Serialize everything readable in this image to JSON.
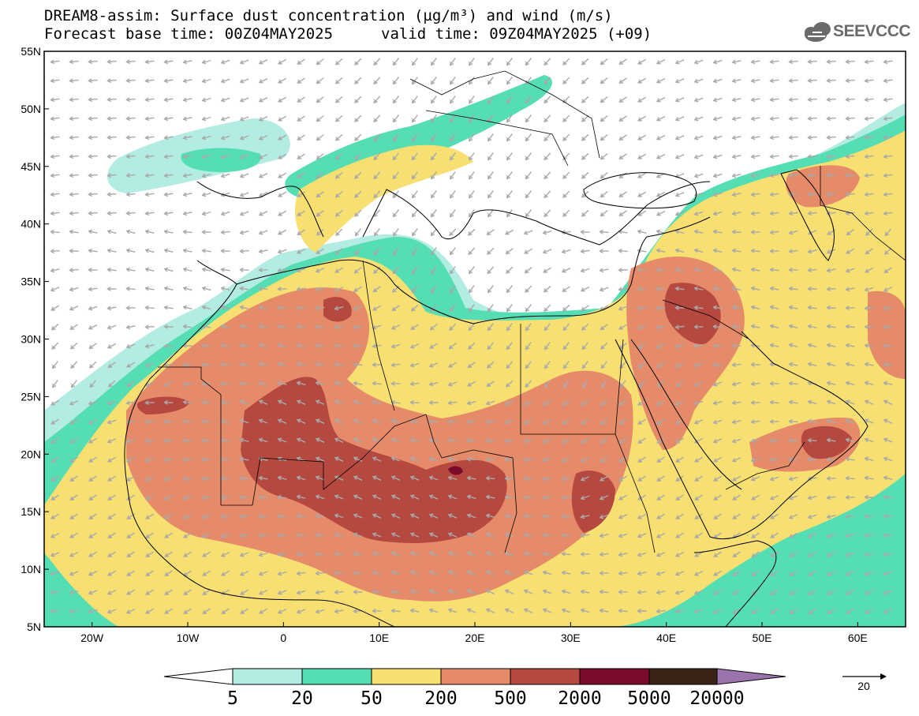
{
  "title": {
    "line1": "DREAM8-assim: Surface dust concentration (µg/m³) and wind (m/s)",
    "forecast_base": "Forecast base time: 00Z04MAY2025",
    "valid_time": "valid time: 09Z04MAY2025 (+09)"
  },
  "logo": {
    "text": "SEEVCCC",
    "icon": "cloud-icon"
  },
  "map": {
    "lon_range": [
      -25,
      65
    ],
    "lat_range": [
      5,
      55
    ],
    "lat_ticks": [
      "55N",
      "50N",
      "45N",
      "40N",
      "35N",
      "30N",
      "25N",
      "20N",
      "15N",
      "10N",
      "5N"
    ],
    "lon_ticks": [
      "20W",
      "10W",
      "0",
      "10E",
      "20E",
      "30E",
      "40E",
      "50E",
      "60E"
    ],
    "colors": {
      "5": "#b3ece2",
      "20": "#55ddb3",
      "50": "#f7df72",
      "200": "#e68b6a",
      "500": "#b5483f",
      "2000": "#7b0b2a",
      "5000": "#3a2418",
      "20000": "#9b74ad",
      "wind_arrow": "#a9a9a9",
      "coastline": "#000000"
    }
  },
  "colorbar": {
    "levels": [
      "5",
      "20",
      "50",
      "200",
      "500",
      "2000",
      "5000",
      "20000"
    ],
    "bin_colors": [
      "#b3ece2",
      "#55ddb3",
      "#f7df72",
      "#e68b6a",
      "#b5483f",
      "#7b0b2a",
      "#3a2418"
    ],
    "low_cap": "#ffffff",
    "high_cap": "#9b74ad"
  },
  "wind_reference": {
    "label": "20"
  }
}
